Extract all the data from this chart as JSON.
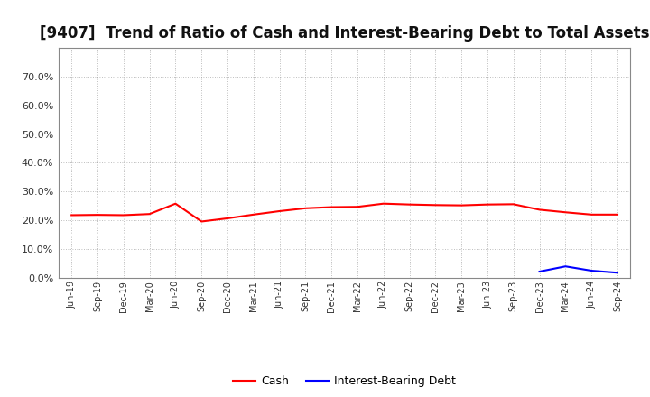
{
  "title": "[9407]  Trend of Ratio of Cash and Interest-Bearing Debt to Total Assets",
  "cash_dates": [
    "Jun-19",
    "Sep-19",
    "Dec-19",
    "Mar-20",
    "Jun-20",
    "Sep-20",
    "Dec-20",
    "Mar-21",
    "Jun-21",
    "Sep-21",
    "Dec-21",
    "Mar-22",
    "Jun-22",
    "Sep-22",
    "Dec-22",
    "Mar-23",
    "Jun-23",
    "Sep-23",
    "Dec-23",
    "Mar-24",
    "Jun-24",
    "Sep-24"
  ],
  "cash_values": [
    0.218,
    0.219,
    0.218,
    0.222,
    0.258,
    0.196,
    0.207,
    0.22,
    0.232,
    0.242,
    0.246,
    0.247,
    0.258,
    0.255,
    0.253,
    0.252,
    0.255,
    0.256,
    0.237,
    0.228,
    0.22,
    0.22
  ],
  "debt_dates": [
    "Dec-23",
    "Mar-24",
    "Jun-24",
    "Sep-24"
  ],
  "debt_values": [
    0.022,
    0.04,
    0.025,
    0.018
  ],
  "cash_color": "#FF0000",
  "debt_color": "#0000FF",
  "ylim": [
    0,
    0.8
  ],
  "yticks": [
    0.0,
    0.1,
    0.2,
    0.3,
    0.4,
    0.5,
    0.6,
    0.7
  ],
  "background_color": "#FFFFFF",
  "grid_color": "#AAAAAA",
  "title_fontsize": 12,
  "legend_cash": "Cash",
  "legend_debt": "Interest-Bearing Debt"
}
